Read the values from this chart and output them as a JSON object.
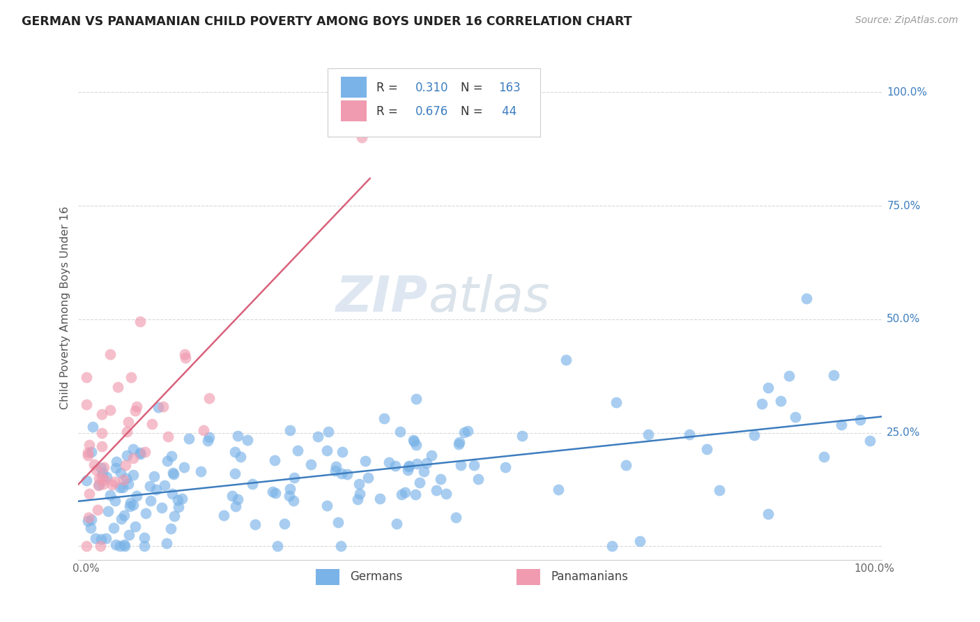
{
  "title": "GERMAN VS PANAMANIAN CHILD POVERTY AMONG BOYS UNDER 16 CORRELATION CHART",
  "source": "Source: ZipAtlas.com",
  "ylabel": "Child Poverty Among Boys Under 16",
  "german_color": "#7ab3e8",
  "panamanian_color": "#f09bb0",
  "german_line_color": "#3d7dbf",
  "panamanian_line_color": "#d9607a",
  "watermark_zip": "ZIP",
  "watermark_atlas": "atlas",
  "background_color": "#ffffff",
  "grid_color": "#d8d8d8",
  "R_german": 0.31,
  "N_german": 163,
  "R_panamanian": 0.676,
  "N_panamanian": 44,
  "legend_R_color": "#3d7dbf",
  "legend_text_color": "#333333"
}
